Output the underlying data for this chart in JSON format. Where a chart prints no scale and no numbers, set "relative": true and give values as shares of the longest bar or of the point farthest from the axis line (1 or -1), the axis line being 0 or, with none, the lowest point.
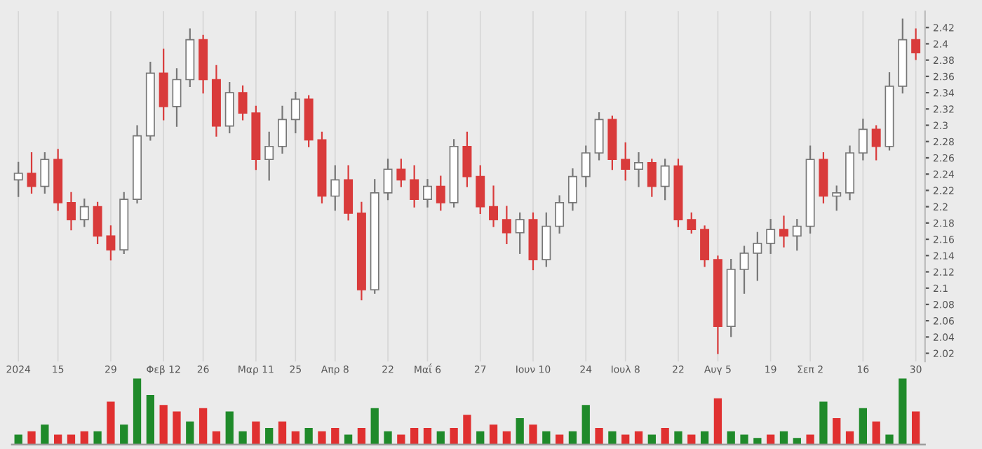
{
  "chart_data": [
    {
      "type": "candlestick",
      "grid": "x",
      "ylim": [
        2.01,
        2.44
      ],
      "yticks": [
        2.02,
        2.04,
        2.06,
        2.08,
        2.1,
        2.12,
        2.14,
        2.16,
        2.18,
        2.2,
        2.22,
        2.24,
        2.26,
        2.28,
        2.3,
        2.32,
        2.34,
        2.36,
        2.38,
        2.4,
        2.42
      ],
      "categories": [
        "2024",
        null,
        null,
        "15",
        null,
        null,
        null,
        "29",
        null,
        null,
        null,
        "Φεβ 12",
        null,
        null,
        "26",
        null,
        null,
        null,
        "Μαρ 11",
        null,
        null,
        "25",
        null,
        null,
        "Απρ 8",
        null,
        null,
        null,
        "22",
        null,
        null,
        "Μαΐ 6",
        null,
        null,
        null,
        "27",
        null,
        null,
        null,
        "Ιουν 10",
        null,
        null,
        null,
        "24",
        null,
        null,
        "Ιουλ 8",
        null,
        null,
        null,
        "22",
        null,
        null,
        "Αυγ 5",
        null,
        null,
        null,
        "19",
        null,
        null,
        "Σεπ 2",
        null,
        null,
        null,
        "16",
        null,
        null,
        null,
        "30"
      ],
      "ohlc": [
        [
          2.233,
          2.254,
          2.213,
          2.241
        ],
        [
          2.241,
          2.266,
          2.217,
          2.225
        ],
        [
          2.225,
          2.266,
          2.217,
          2.258
        ],
        [
          2.258,
          2.27,
          2.196,
          2.205
        ],
        [
          2.205,
          2.217,
          2.172,
          2.184
        ],
        [
          2.184,
          2.209,
          2.176,
          2.2
        ],
        [
          2.2,
          2.205,
          2.155,
          2.164
        ],
        [
          2.164,
          2.176,
          2.135,
          2.147
        ],
        [
          2.147,
          2.217,
          2.143,
          2.209
        ],
        [
          2.209,
          2.299,
          2.205,
          2.287
        ],
        [
          2.287,
          2.377,
          2.282,
          2.364
        ],
        [
          2.364,
          2.393,
          2.307,
          2.323
        ],
        [
          2.323,
          2.369,
          2.299,
          2.356
        ],
        [
          2.356,
          2.418,
          2.348,
          2.405
        ],
        [
          2.405,
          2.41,
          2.34,
          2.356
        ],
        [
          2.356,
          2.373,
          2.287,
          2.299
        ],
        [
          2.299,
          2.352,
          2.291,
          2.34
        ],
        [
          2.34,
          2.348,
          2.307,
          2.315
        ],
        [
          2.315,
          2.323,
          2.246,
          2.258
        ],
        [
          2.258,
          2.291,
          2.233,
          2.274
        ],
        [
          2.274,
          2.323,
          2.266,
          2.307
        ],
        [
          2.307,
          2.34,
          2.291,
          2.332
        ],
        [
          2.332,
          2.336,
          2.274,
          2.282
        ],
        [
          2.282,
          2.291,
          2.205,
          2.213
        ],
        [
          2.213,
          2.25,
          2.196,
          2.233
        ],
        [
          2.233,
          2.25,
          2.184,
          2.192
        ],
        [
          2.192,
          2.205,
          2.086,
          2.098
        ],
        [
          2.098,
          2.233,
          2.094,
          2.217
        ],
        [
          2.217,
          2.258,
          2.209,
          2.246
        ],
        [
          2.246,
          2.258,
          2.225,
          2.233
        ],
        [
          2.233,
          2.25,
          2.2,
          2.209
        ],
        [
          2.209,
          2.233,
          2.2,
          2.225
        ],
        [
          2.225,
          2.237,
          2.196,
          2.205
        ],
        [
          2.205,
          2.282,
          2.2,
          2.274
        ],
        [
          2.274,
          2.291,
          2.225,
          2.237
        ],
        [
          2.237,
          2.25,
          2.192,
          2.2
        ],
        [
          2.2,
          2.225,
          2.176,
          2.184
        ],
        [
          2.184,
          2.2,
          2.155,
          2.168
        ],
        [
          2.168,
          2.192,
          2.143,
          2.184
        ],
        [
          2.184,
          2.192,
          2.123,
          2.135
        ],
        [
          2.135,
          2.192,
          2.127,
          2.176
        ],
        [
          2.176,
          2.213,
          2.168,
          2.205
        ],
        [
          2.205,
          2.246,
          2.196,
          2.237
        ],
        [
          2.237,
          2.274,
          2.225,
          2.266
        ],
        [
          2.266,
          2.315,
          2.258,
          2.307
        ],
        [
          2.307,
          2.311,
          2.246,
          2.258
        ],
        [
          2.258,
          2.278,
          2.233,
          2.246
        ],
        [
          2.246,
          2.266,
          2.225,
          2.254
        ],
        [
          2.254,
          2.258,
          2.213,
          2.225
        ],
        [
          2.225,
          2.258,
          2.209,
          2.25
        ],
        [
          2.25,
          2.258,
          2.176,
          2.184
        ],
        [
          2.184,
          2.192,
          2.168,
          2.172
        ],
        [
          2.172,
          2.176,
          2.127,
          2.135
        ],
        [
          2.135,
          2.139,
          2.02,
          2.053
        ],
        [
          2.053,
          2.135,
          2.041,
          2.123
        ],
        [
          2.123,
          2.151,
          2.094,
          2.143
        ],
        [
          2.143,
          2.168,
          2.11,
          2.155
        ],
        [
          2.155,
          2.184,
          2.143,
          2.172
        ],
        [
          2.172,
          2.188,
          2.151,
          2.164
        ],
        [
          2.164,
          2.184,
          2.147,
          2.176
        ],
        [
          2.176,
          2.274,
          2.168,
          2.258
        ],
        [
          2.258,
          2.266,
          2.205,
          2.213
        ],
        [
          2.213,
          2.225,
          2.196,
          2.217
        ],
        [
          2.217,
          2.274,
          2.209,
          2.266
        ],
        [
          2.266,
          2.307,
          2.258,
          2.295
        ],
        [
          2.295,
          2.299,
          2.258,
          2.274
        ],
        [
          2.274,
          2.364,
          2.27,
          2.348
        ],
        [
          2.348,
          2.43,
          2.34,
          2.405
        ],
        [
          2.405,
          2.418,
          2.381,
          2.389
        ]
      ],
      "colors": [
        "#ffffff",
        "#d93b3b",
        "#ffffff",
        "#d93b3b",
        "#d93b3b",
        "#ffffff",
        "#d93b3b",
        "#d93b3b",
        "#ffffff",
        "#ffffff",
        "#ffffff",
        "#d93b3b",
        "#ffffff",
        "#ffffff",
        "#d93b3b",
        "#d93b3b",
        "#ffffff",
        "#d93b3b",
        "#d93b3b",
        "#ffffff",
        "#ffffff",
        "#ffffff",
        "#d93b3b",
        "#d93b3b",
        "#ffffff",
        "#d93b3b",
        "#d93b3b",
        "#ffffff",
        "#ffffff",
        "#d93b3b",
        "#d93b3b",
        "#ffffff",
        "#d93b3b",
        "#ffffff",
        "#d93b3b",
        "#d93b3b",
        "#d93b3b",
        "#d93b3b",
        "#ffffff",
        "#d93b3b",
        "#ffffff",
        "#ffffff",
        "#ffffff",
        "#ffffff",
        "#ffffff",
        "#d93b3b",
        "#d93b3b",
        "#ffffff",
        "#d93b3b",
        "#ffffff",
        "#d93b3b",
        "#d93b3b",
        "#d93b3b",
        "#d93b3b",
        "#ffffff",
        "#ffffff",
        "#ffffff",
        "#ffffff",
        "#d93b3b",
        "#ffffff",
        "#ffffff",
        "#d93b3b",
        "#ffffff",
        "#ffffff",
        "#ffffff",
        "#d93b3b",
        "#ffffff",
        "#ffffff",
        "#d93b3b"
      ]
    },
    {
      "type": "bar",
      "relative": true,
      "grid": "x",
      "categories": [
        null,
        null,
        null,
        null,
        null,
        null,
        null,
        null,
        null,
        null,
        null,
        null,
        null,
        null,
        null,
        null,
        null,
        null,
        null,
        null,
        null,
        null,
        null,
        null,
        null,
        null,
        null,
        null,
        null,
        null,
        null,
        null,
        null,
        null,
        null,
        null,
        null,
        null,
        null,
        null,
        null,
        null,
        null,
        null,
        null,
        null,
        null,
        null,
        null,
        null,
        null,
        null,
        null,
        null,
        null,
        null,
        null,
        null,
        null,
        null,
        null,
        null,
        null,
        null,
        null,
        null,
        null,
        null,
        null
      ],
      "values": [
        0.15,
        0.2,
        0.3,
        0.15,
        0.15,
        0.2,
        0.2,
        0.65,
        0.3,
        1.0,
        0.75,
        0.6,
        0.5,
        0.35,
        0.55,
        0.2,
        0.5,
        0.2,
        0.35,
        0.25,
        0.35,
        0.2,
        0.25,
        0.2,
        0.25,
        0.15,
        0.25,
        0.55,
        0.2,
        0.15,
        0.25,
        0.25,
        0.2,
        0.25,
        0.45,
        0.2,
        0.3,
        0.2,
        0.4,
        0.3,
        0.2,
        0.15,
        0.2,
        0.6,
        0.25,
        0.2,
        0.15,
        0.2,
        0.15,
        0.25,
        0.2,
        0.15,
        0.2,
        0.7,
        0.2,
        0.15,
        0.1,
        0.15,
        0.2,
        0.1,
        0.15,
        0.65,
        0.4,
        0.2,
        0.55,
        0.35,
        0.15,
        1.0,
        0.5
      ],
      "colors": [
        "#1f8a2a",
        "#e03030",
        "#1f8a2a",
        "#e03030",
        "#e03030",
        "#e03030",
        "#1f8a2a",
        "#e03030",
        "#1f8a2a",
        "#1f8a2a",
        "#1f8a2a",
        "#e03030",
        "#e03030",
        "#1f8a2a",
        "#e03030",
        "#e03030",
        "#1f8a2a",
        "#1f8a2a",
        "#e03030",
        "#1f8a2a",
        "#e03030",
        "#e03030",
        "#1f8a2a",
        "#e03030",
        "#e03030",
        "#1f8a2a",
        "#e03030",
        "#1f8a2a",
        "#1f8a2a",
        "#e03030",
        "#e03030",
        "#e03030",
        "#1f8a2a",
        "#e03030",
        "#e03030",
        "#1f8a2a",
        "#e03030",
        "#e03030",
        "#1f8a2a",
        "#e03030",
        "#1f8a2a",
        "#e03030",
        "#1f8a2a",
        "#1f8a2a",
        "#e03030",
        "#1f8a2a",
        "#e03030",
        "#e03030",
        "#1f8a2a",
        "#e03030",
        "#1f8a2a",
        "#e03030",
        "#1f8a2a",
        "#e03030",
        "#1f8a2a",
        "#1f8a2a",
        "#1f8a2a",
        "#e03030",
        "#1f8a2a",
        "#1f8a2a",
        "#e03030",
        "#1f8a2a",
        "#e03030",
        "#e03030",
        "#1f8a2a",
        "#e03030",
        "#1f8a2a",
        "#1f8a2a",
        "#e03030"
      ]
    }
  ]
}
